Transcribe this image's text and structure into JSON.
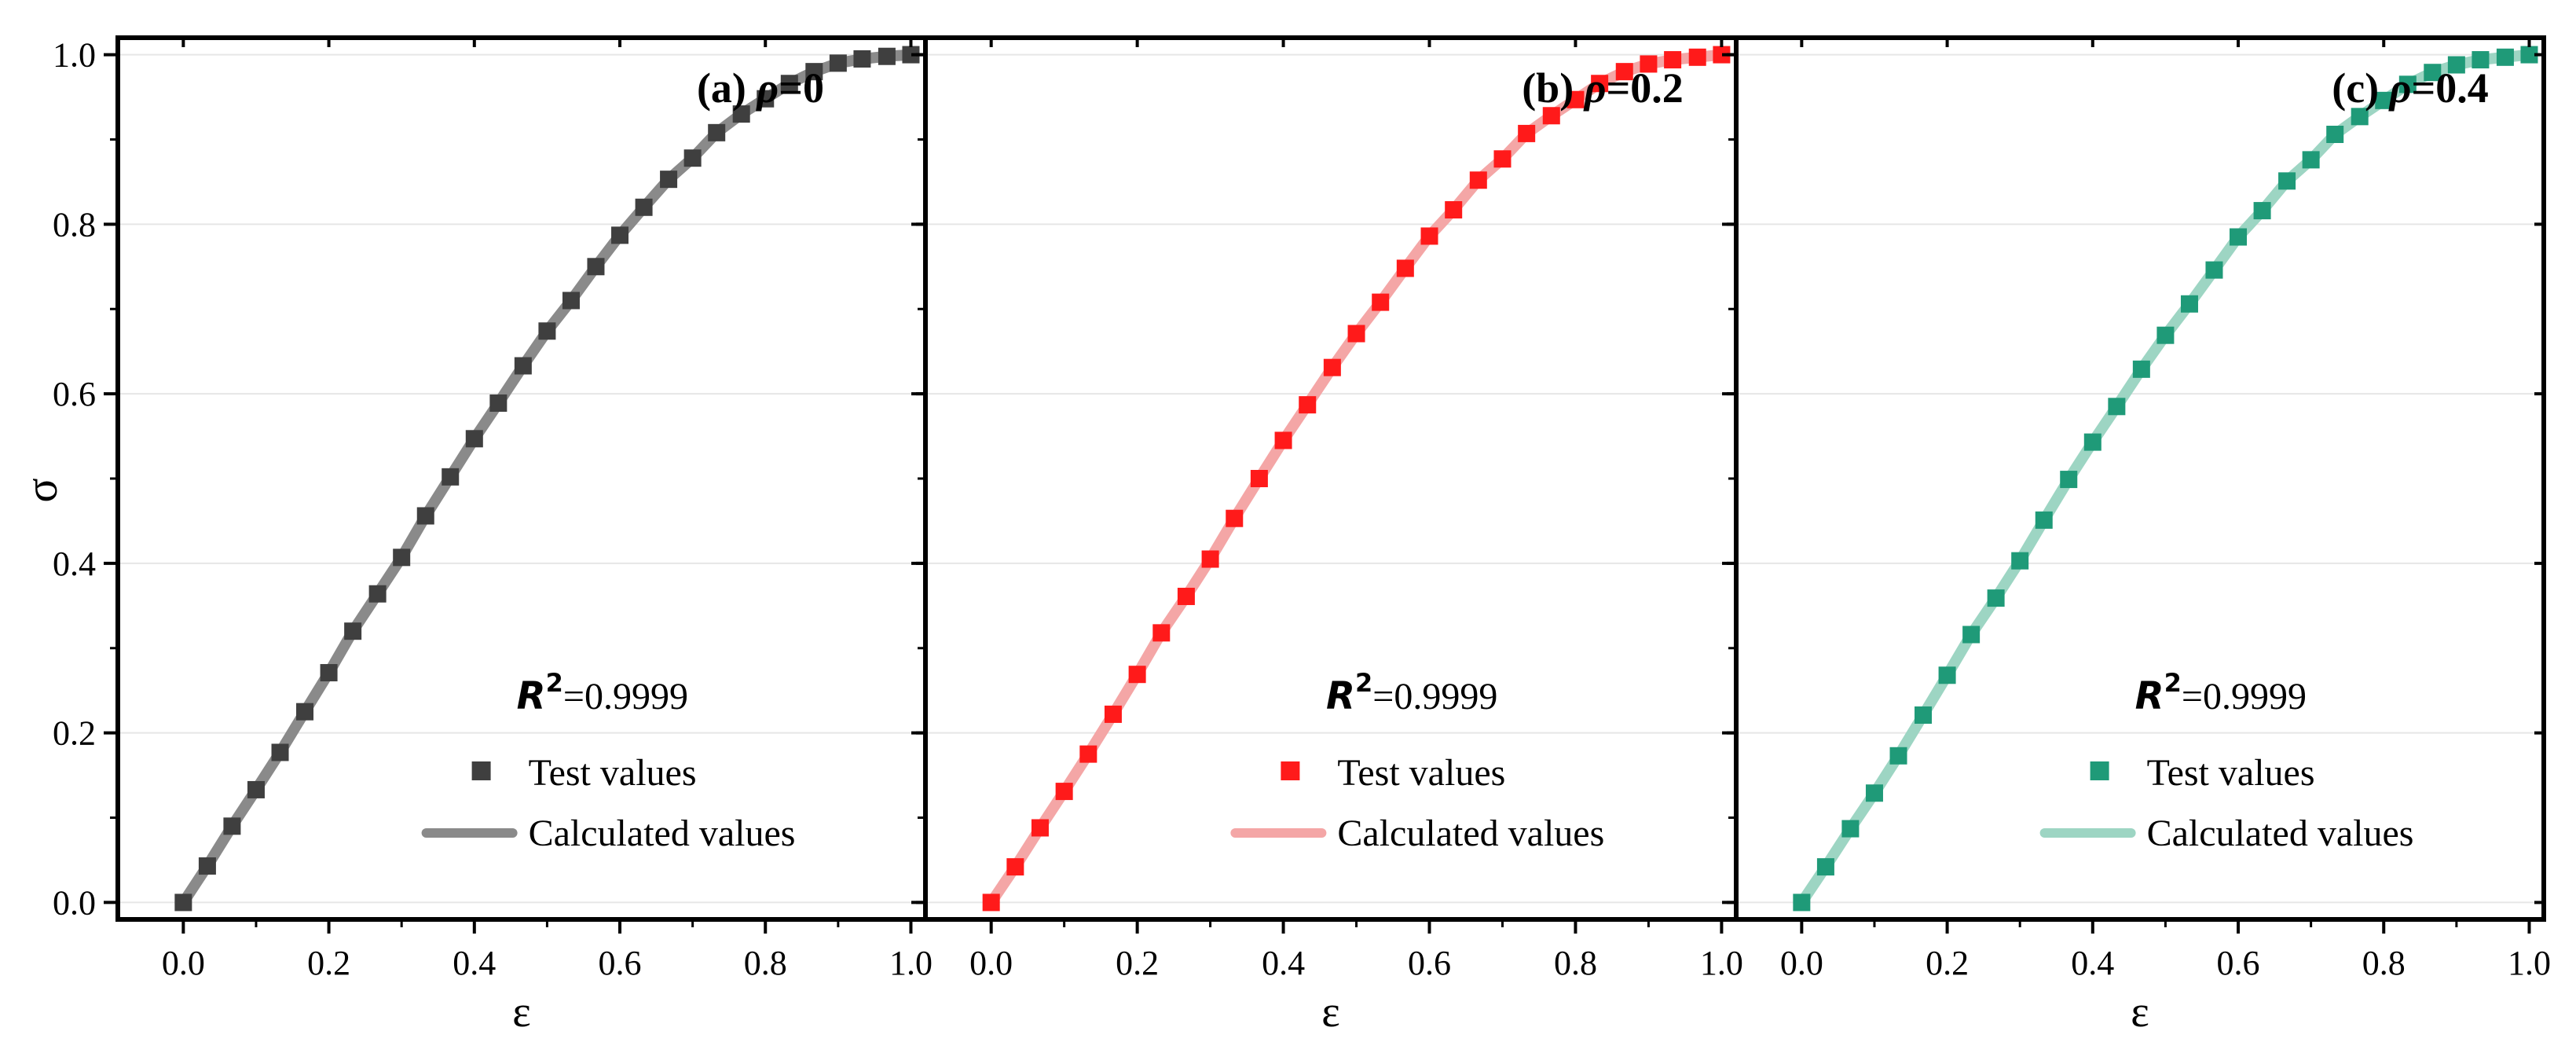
{
  "figure": {
    "y_axis_label": "σ",
    "x_axis_label": "ε"
  },
  "chart_data": [
    {
      "type": "line",
      "panel_label": "(a)",
      "title_symbol": "ρ",
      "title_value": "=0",
      "xlabel": "ε",
      "ylabel": "σ",
      "xlim": [
        -0.09,
        1.02
      ],
      "ylim": [
        -0.02,
        1.02
      ],
      "xticks": [
        "0.0",
        "0.2",
        "0.4",
        "0.6",
        "0.8",
        "1.0"
      ],
      "yticks": [
        "0.0",
        "0.2",
        "0.4",
        "0.6",
        "0.8",
        "1.0"
      ],
      "grid": true,
      "marker_color": "#3f3f3f",
      "line_color": "#8a8a8a",
      "r2_symbol": "R",
      "r2_exponent": "2",
      "r2_value": "=0.9999",
      "legend": {
        "position": "bottom-right",
        "markers_label": "Test values",
        "line_label": "Calculated values"
      },
      "series": [
        {
          "name": "Test values",
          "x": [
            0.0,
            0.033,
            0.067,
            0.1,
            0.133,
            0.167,
            0.2,
            0.233,
            0.267,
            0.3,
            0.333,
            0.367,
            0.4,
            0.433,
            0.467,
            0.5,
            0.533,
            0.567,
            0.6,
            0.633,
            0.667,
            0.7,
            0.733,
            0.767,
            0.8,
            0.833,
            0.867,
            0.9,
            0.933,
            0.967,
            1.0
          ],
          "y": [
            0.0,
            0.043,
            0.09,
            0.133,
            0.177,
            0.225,
            0.271,
            0.32,
            0.364,
            0.407,
            0.456,
            0.502,
            0.547,
            0.589,
            0.633,
            0.674,
            0.71,
            0.75,
            0.787,
            0.82,
            0.853,
            0.878,
            0.908,
            0.93,
            0.948,
            0.966,
            0.98,
            0.99,
            0.995,
            0.998,
            1.0
          ]
        },
        {
          "name": "Calculated values",
          "x": [
            0.0,
            0.033,
            0.067,
            0.1,
            0.133,
            0.167,
            0.2,
            0.233,
            0.267,
            0.3,
            0.333,
            0.367,
            0.4,
            0.433,
            0.467,
            0.5,
            0.533,
            0.567,
            0.6,
            0.633,
            0.667,
            0.7,
            0.733,
            0.767,
            0.8,
            0.833,
            0.867,
            0.9,
            0.933,
            0.967,
            1.0
          ],
          "y": [
            0.0,
            0.043,
            0.09,
            0.133,
            0.177,
            0.225,
            0.271,
            0.32,
            0.364,
            0.407,
            0.456,
            0.502,
            0.547,
            0.589,
            0.633,
            0.674,
            0.71,
            0.75,
            0.787,
            0.82,
            0.853,
            0.878,
            0.908,
            0.93,
            0.948,
            0.966,
            0.98,
            0.99,
            0.995,
            0.998,
            1.0
          ]
        }
      ]
    },
    {
      "type": "line",
      "panel_label": "(b)",
      "title_symbol": "ρ",
      "title_value": "=0.2",
      "xlabel": "ε",
      "ylabel": "σ",
      "xlim": [
        -0.09,
        1.02
      ],
      "ylim": [
        -0.02,
        1.02
      ],
      "xticks": [
        "0.0",
        "0.2",
        "0.4",
        "0.6",
        "0.8",
        "1.0"
      ],
      "yticks": [
        "0.0",
        "0.2",
        "0.4",
        "0.6",
        "0.8",
        "1.0"
      ],
      "grid": true,
      "marker_color": "#ff1a1a",
      "line_color": "#f4a6a6",
      "r2_symbol": "R",
      "r2_exponent": "2",
      "r2_value": "=0.9999",
      "legend": {
        "position": "bottom-right",
        "markers_label": "Test values",
        "line_label": "Calculated values"
      },
      "series": [
        {
          "name": "Test values",
          "x": [
            0.0,
            0.033,
            0.067,
            0.1,
            0.133,
            0.167,
            0.2,
            0.233,
            0.267,
            0.3,
            0.333,
            0.367,
            0.4,
            0.433,
            0.467,
            0.5,
            0.533,
            0.567,
            0.6,
            0.633,
            0.667,
            0.7,
            0.733,
            0.767,
            0.8,
            0.833,
            0.867,
            0.9,
            0.933,
            0.967,
            1.0
          ],
          "y": [
            0.0,
            0.042,
            0.088,
            0.131,
            0.175,
            0.222,
            0.269,
            0.318,
            0.361,
            0.405,
            0.453,
            0.5,
            0.545,
            0.587,
            0.631,
            0.671,
            0.708,
            0.748,
            0.786,
            0.817,
            0.852,
            0.877,
            0.907,
            0.928,
            0.947,
            0.966,
            0.98,
            0.989,
            0.994,
            0.997,
            1.0
          ]
        },
        {
          "name": "Calculated values",
          "x": [
            0.0,
            0.033,
            0.067,
            0.1,
            0.133,
            0.167,
            0.2,
            0.233,
            0.267,
            0.3,
            0.333,
            0.367,
            0.4,
            0.433,
            0.467,
            0.5,
            0.533,
            0.567,
            0.6,
            0.633,
            0.667,
            0.7,
            0.733,
            0.767,
            0.8,
            0.833,
            0.867,
            0.9,
            0.933,
            0.967,
            1.0
          ],
          "y": [
            0.0,
            0.042,
            0.088,
            0.131,
            0.175,
            0.222,
            0.269,
            0.318,
            0.361,
            0.405,
            0.453,
            0.5,
            0.545,
            0.587,
            0.631,
            0.671,
            0.708,
            0.748,
            0.786,
            0.817,
            0.852,
            0.877,
            0.907,
            0.928,
            0.947,
            0.966,
            0.98,
            0.989,
            0.994,
            0.997,
            1.0
          ]
        }
      ]
    },
    {
      "type": "line",
      "panel_label": "(c)",
      "title_symbol": "ρ",
      "title_value": "=0.4",
      "xlabel": "ε",
      "ylabel": "σ",
      "xlim": [
        -0.09,
        1.02
      ],
      "ylim": [
        -0.02,
        1.02
      ],
      "xticks": [
        "0.0",
        "0.2",
        "0.4",
        "0.6",
        "0.8",
        "1.0"
      ],
      "yticks": [
        "0.0",
        "0.2",
        "0.4",
        "0.6",
        "0.8",
        "1.0"
      ],
      "grid": true,
      "marker_color": "#1f9a78",
      "line_color": "#9dd5c3",
      "r2_symbol": "R",
      "r2_exponent": "2",
      "r2_value": "=0.9999",
      "legend": {
        "position": "bottom-right",
        "markers_label": "Test values",
        "line_label": "Calculated values"
      },
      "series": [
        {
          "name": "Test values",
          "x": [
            0.0,
            0.033,
            0.067,
            0.1,
            0.133,
            0.167,
            0.2,
            0.233,
            0.267,
            0.3,
            0.333,
            0.367,
            0.4,
            0.433,
            0.467,
            0.5,
            0.533,
            0.567,
            0.6,
            0.633,
            0.667,
            0.7,
            0.733,
            0.767,
            0.8,
            0.833,
            0.867,
            0.9,
            0.933,
            0.967,
            1.0
          ],
          "y": [
            0.0,
            0.042,
            0.087,
            0.129,
            0.173,
            0.221,
            0.268,
            0.316,
            0.359,
            0.403,
            0.451,
            0.499,
            0.543,
            0.585,
            0.629,
            0.669,
            0.706,
            0.746,
            0.785,
            0.816,
            0.851,
            0.876,
            0.906,
            0.927,
            0.946,
            0.965,
            0.979,
            0.988,
            0.994,
            0.997,
            1.0
          ]
        },
        {
          "name": "Calculated values",
          "x": [
            0.0,
            0.033,
            0.067,
            0.1,
            0.133,
            0.167,
            0.2,
            0.233,
            0.267,
            0.3,
            0.333,
            0.367,
            0.4,
            0.433,
            0.467,
            0.5,
            0.533,
            0.567,
            0.6,
            0.633,
            0.667,
            0.7,
            0.733,
            0.767,
            0.8,
            0.833,
            0.867,
            0.9,
            0.933,
            0.967,
            1.0
          ],
          "y": [
            0.0,
            0.042,
            0.087,
            0.129,
            0.173,
            0.221,
            0.268,
            0.316,
            0.359,
            0.403,
            0.451,
            0.499,
            0.543,
            0.585,
            0.629,
            0.669,
            0.706,
            0.746,
            0.785,
            0.816,
            0.851,
            0.876,
            0.906,
            0.927,
            0.946,
            0.965,
            0.979,
            0.988,
            0.994,
            0.997,
            1.0
          ]
        }
      ]
    }
  ]
}
